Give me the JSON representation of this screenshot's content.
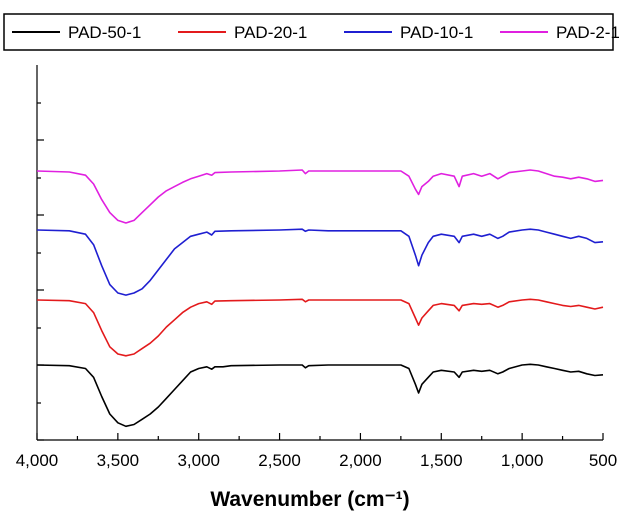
{
  "chart_data": {
    "type": "line",
    "xlabel": "Wavenumber (cm⁻¹)",
    "ylabel": "",
    "xlim": [
      4000,
      500
    ],
    "x_reversed": true,
    "y_ticks_labeled": false,
    "xticks": [
      4000,
      3500,
      3000,
      2500,
      2000,
      1500,
      1000,
      500
    ],
    "xtick_labels": [
      "4,000",
      "3,500",
      "3,000",
      "2,500",
      "2,000",
      "1,500",
      "1,000",
      "500"
    ],
    "legend_position": "top",
    "series": [
      {
        "name": "PAD-50-1",
        "color": "#000000",
        "points": [
          [
            4000,
            0.0
          ],
          [
            3800,
            -0.02
          ],
          [
            3700,
            -0.1
          ],
          [
            3650,
            -0.35
          ],
          [
            3600,
            -0.9
          ],
          [
            3550,
            -1.4
          ],
          [
            3500,
            -1.65
          ],
          [
            3450,
            -1.75
          ],
          [
            3400,
            -1.7
          ],
          [
            3350,
            -1.55
          ],
          [
            3300,
            -1.4
          ],
          [
            3250,
            -1.2
          ],
          [
            3200,
            -0.95
          ],
          [
            3150,
            -0.7
          ],
          [
            3100,
            -0.45
          ],
          [
            3050,
            -0.2
          ],
          [
            3000,
            -0.1
          ],
          [
            2950,
            -0.05
          ],
          [
            2920,
            -0.12
          ],
          [
            2900,
            -0.05
          ],
          [
            2850,
            -0.05
          ],
          [
            2800,
            -0.02
          ],
          [
            2500,
            0.0
          ],
          [
            2360,
            0.0
          ],
          [
            2340,
            -0.08
          ],
          [
            2320,
            -0.02
          ],
          [
            2200,
            0.0
          ],
          [
            2000,
            0.0
          ],
          [
            1750,
            0.0
          ],
          [
            1700,
            -0.1
          ],
          [
            1660,
            -0.55
          ],
          [
            1640,
            -0.8
          ],
          [
            1620,
            -0.55
          ],
          [
            1580,
            -0.35
          ],
          [
            1550,
            -0.2
          ],
          [
            1500,
            -0.15
          ],
          [
            1420,
            -0.2
          ],
          [
            1390,
            -0.35
          ],
          [
            1370,
            -0.2
          ],
          [
            1300,
            -0.15
          ],
          [
            1250,
            -0.18
          ],
          [
            1200,
            -0.15
          ],
          [
            1150,
            -0.25
          ],
          [
            1120,
            -0.2
          ],
          [
            1080,
            -0.1
          ],
          [
            1000,
            0.0
          ],
          [
            950,
            0.02
          ],
          [
            900,
            0.0
          ],
          [
            850,
            -0.05
          ],
          [
            800,
            -0.1
          ],
          [
            750,
            -0.15
          ],
          [
            700,
            -0.2
          ],
          [
            650,
            -0.18
          ],
          [
            600,
            -0.25
          ],
          [
            550,
            -0.3
          ],
          [
            500,
            -0.28
          ]
        ]
      },
      {
        "name": "PAD-20-1",
        "color": "#e31a1c",
        "points": [
          [
            4000,
            0.0
          ],
          [
            3800,
            -0.02
          ],
          [
            3700,
            -0.1
          ],
          [
            3650,
            -0.35
          ],
          [
            3600,
            -0.85
          ],
          [
            3550,
            -1.3
          ],
          [
            3500,
            -1.5
          ],
          [
            3450,
            -1.55
          ],
          [
            3400,
            -1.5
          ],
          [
            3350,
            -1.35
          ],
          [
            3300,
            -1.2
          ],
          [
            3250,
            -1.0
          ],
          [
            3200,
            -0.75
          ],
          [
            3150,
            -0.55
          ],
          [
            3100,
            -0.35
          ],
          [
            3050,
            -0.2
          ],
          [
            3000,
            -0.1
          ],
          [
            2950,
            -0.05
          ],
          [
            2920,
            -0.12
          ],
          [
            2900,
            -0.03
          ],
          [
            2800,
            -0.02
          ],
          [
            2500,
            0.0
          ],
          [
            2360,
            0.02
          ],
          [
            2340,
            -0.05
          ],
          [
            2320,
            0.0
          ],
          [
            2200,
            0.0
          ],
          [
            2000,
            0.0
          ],
          [
            1750,
            0.0
          ],
          [
            1700,
            -0.1
          ],
          [
            1660,
            -0.5
          ],
          [
            1640,
            -0.7
          ],
          [
            1620,
            -0.5
          ],
          [
            1580,
            -0.3
          ],
          [
            1550,
            -0.15
          ],
          [
            1500,
            -0.1
          ],
          [
            1420,
            -0.15
          ],
          [
            1390,
            -0.3
          ],
          [
            1370,
            -0.15
          ],
          [
            1300,
            -0.1
          ],
          [
            1250,
            -0.12
          ],
          [
            1200,
            -0.1
          ],
          [
            1150,
            -0.2
          ],
          [
            1120,
            -0.15
          ],
          [
            1080,
            -0.05
          ],
          [
            1000,
            0.0
          ],
          [
            950,
            0.02
          ],
          [
            900,
            0.0
          ],
          [
            850,
            -0.05
          ],
          [
            800,
            -0.1
          ],
          [
            750,
            -0.15
          ],
          [
            700,
            -0.18
          ],
          [
            650,
            -0.15
          ],
          [
            600,
            -0.2
          ],
          [
            550,
            -0.25
          ],
          [
            500,
            -0.2
          ]
        ]
      },
      {
        "name": "PAD-10-1",
        "color": "#1f1fd1",
        "points": [
          [
            4000,
            0.0
          ],
          [
            3800,
            -0.02
          ],
          [
            3700,
            -0.1
          ],
          [
            3650,
            -0.35
          ],
          [
            3600,
            -0.85
          ],
          [
            3550,
            -1.3
          ],
          [
            3500,
            -1.5
          ],
          [
            3450,
            -1.55
          ],
          [
            3400,
            -1.5
          ],
          [
            3350,
            -1.4
          ],
          [
            3300,
            -1.2
          ],
          [
            3250,
            -0.95
          ],
          [
            3200,
            -0.7
          ],
          [
            3150,
            -0.45
          ],
          [
            3100,
            -0.3
          ],
          [
            3050,
            -0.15
          ],
          [
            3000,
            -0.1
          ],
          [
            2950,
            -0.05
          ],
          [
            2920,
            -0.12
          ],
          [
            2900,
            -0.03
          ],
          [
            2800,
            -0.02
          ],
          [
            2500,
            0.0
          ],
          [
            2360,
            0.02
          ],
          [
            2340,
            -0.03
          ],
          [
            2320,
            0.0
          ],
          [
            2200,
            -0.02
          ],
          [
            2000,
            -0.02
          ],
          [
            1750,
            -0.02
          ],
          [
            1700,
            -0.15
          ],
          [
            1660,
            -0.6
          ],
          [
            1640,
            -0.85
          ],
          [
            1620,
            -0.6
          ],
          [
            1580,
            -0.3
          ],
          [
            1550,
            -0.15
          ],
          [
            1500,
            -0.1
          ],
          [
            1420,
            -0.15
          ],
          [
            1390,
            -0.3
          ],
          [
            1370,
            -0.15
          ],
          [
            1300,
            -0.1
          ],
          [
            1250,
            -0.15
          ],
          [
            1200,
            -0.1
          ],
          [
            1150,
            -0.2
          ],
          [
            1120,
            -0.15
          ],
          [
            1080,
            -0.05
          ],
          [
            1000,
            0.0
          ],
          [
            950,
            0.02
          ],
          [
            900,
            0.0
          ],
          [
            850,
            -0.05
          ],
          [
            800,
            -0.1
          ],
          [
            750,
            -0.15
          ],
          [
            700,
            -0.2
          ],
          [
            650,
            -0.15
          ],
          [
            600,
            -0.2
          ],
          [
            550,
            -0.3
          ],
          [
            500,
            -0.28
          ]
        ]
      },
      {
        "name": "PAD-2-1",
        "color": "#e020e0",
        "points": [
          [
            4000,
            0.0
          ],
          [
            3800,
            -0.02
          ],
          [
            3700,
            -0.08
          ],
          [
            3650,
            -0.25
          ],
          [
            3600,
            -0.55
          ],
          [
            3550,
            -0.8
          ],
          [
            3500,
            -0.95
          ],
          [
            3450,
            -1.0
          ],
          [
            3400,
            -0.95
          ],
          [
            3350,
            -0.8
          ],
          [
            3300,
            -0.65
          ],
          [
            3250,
            -0.5
          ],
          [
            3200,
            -0.38
          ],
          [
            3150,
            -0.3
          ],
          [
            3100,
            -0.22
          ],
          [
            3050,
            -0.15
          ],
          [
            3000,
            -0.1
          ],
          [
            2950,
            -0.05
          ],
          [
            2920,
            -0.08
          ],
          [
            2900,
            -0.03
          ],
          [
            2800,
            -0.02
          ],
          [
            2500,
            0.0
          ],
          [
            2360,
            0.02
          ],
          [
            2340,
            -0.05
          ],
          [
            2320,
            0.0
          ],
          [
            2200,
            0.0
          ],
          [
            2000,
            0.0
          ],
          [
            1750,
            0.0
          ],
          [
            1700,
            -0.1
          ],
          [
            1660,
            -0.35
          ],
          [
            1640,
            -0.45
          ],
          [
            1620,
            -0.3
          ],
          [
            1580,
            -0.2
          ],
          [
            1550,
            -0.1
          ],
          [
            1500,
            -0.05
          ],
          [
            1420,
            -0.1
          ],
          [
            1390,
            -0.3
          ],
          [
            1370,
            -0.1
          ],
          [
            1300,
            -0.05
          ],
          [
            1250,
            -0.1
          ],
          [
            1200,
            -0.05
          ],
          [
            1150,
            -0.15
          ],
          [
            1120,
            -0.1
          ],
          [
            1080,
            -0.03
          ],
          [
            1000,
            0.0
          ],
          [
            950,
            0.02
          ],
          [
            900,
            0.0
          ],
          [
            850,
            -0.05
          ],
          [
            800,
            -0.1
          ],
          [
            750,
            -0.12
          ],
          [
            700,
            -0.15
          ],
          [
            650,
            -0.12
          ],
          [
            600,
            -0.15
          ],
          [
            550,
            -0.2
          ],
          [
            500,
            -0.18
          ]
        ]
      }
    ]
  }
}
